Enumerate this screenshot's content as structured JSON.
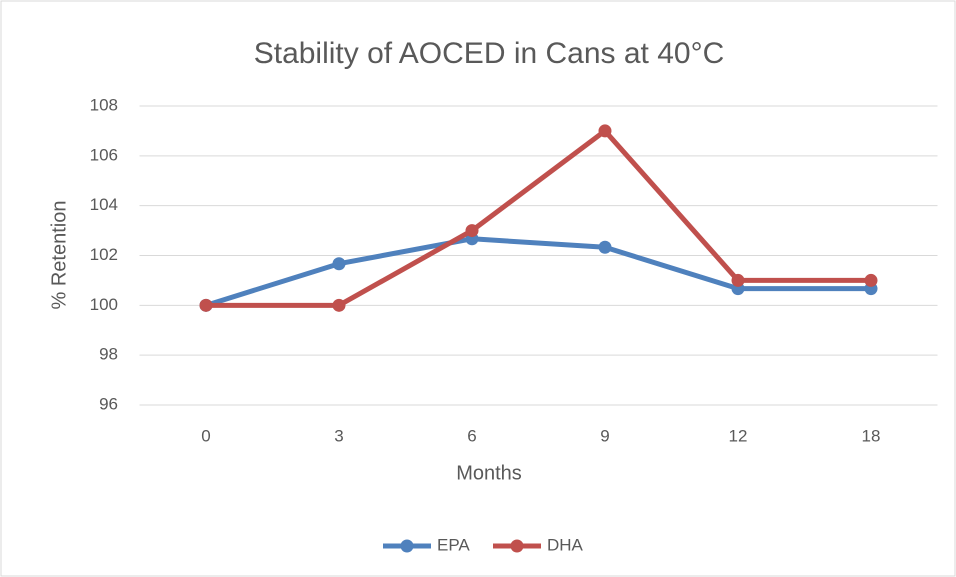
{
  "chart_data": {
    "type": "line",
    "title": "Stability of AOCED in Cans at 40°C",
    "xlabel": "Months",
    "ylabel": "% Retention",
    "categories": [
      "0",
      "3",
      "6",
      "9",
      "12",
      "18"
    ],
    "series": [
      {
        "name": "EPA",
        "color": "#4f81bd",
        "values": [
          100,
          101.67,
          102.67,
          102.33,
          100.67,
          100.67
        ]
      },
      {
        "name": "DHA",
        "color": "#c0504d",
        "values": [
          100,
          100,
          103,
          107,
          101,
          101
        ]
      }
    ],
    "ylim": [
      96,
      108
    ],
    "yticks": [
      96,
      98,
      100,
      102,
      104,
      106,
      108
    ],
    "grid": true,
    "legend": "bottom"
  }
}
